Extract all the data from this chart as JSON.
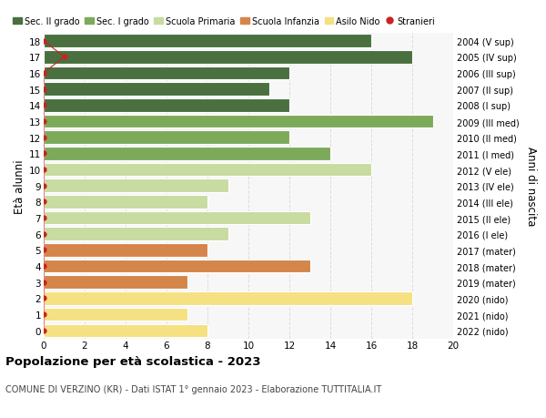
{
  "ages": [
    0,
    1,
    2,
    3,
    4,
    5,
    6,
    7,
    8,
    9,
    10,
    11,
    12,
    13,
    14,
    15,
    16,
    17,
    18
  ],
  "years_labels": [
    "2022 (nido)",
    "2021 (nido)",
    "2020 (nido)",
    "2019 (mater)",
    "2018 (mater)",
    "2017 (mater)",
    "2016 (I ele)",
    "2015 (II ele)",
    "2014 (III ele)",
    "2013 (IV ele)",
    "2012 (V ele)",
    "2011 (I med)",
    "2010 (II med)",
    "2009 (III med)",
    "2008 (I sup)",
    "2007 (II sup)",
    "2006 (III sup)",
    "2005 (IV sup)",
    "2004 (V sup)"
  ],
  "values": [
    8,
    7,
    18,
    7,
    13,
    8,
    9,
    13,
    8,
    9,
    16,
    14,
    12,
    19,
    12,
    11,
    12,
    18,
    16
  ],
  "bar_colors": [
    "#f5e082",
    "#f5e082",
    "#f5e082",
    "#d4854a",
    "#d4854a",
    "#d4854a",
    "#c8dba0",
    "#c8dba0",
    "#c8dba0",
    "#c8dba0",
    "#c8dba0",
    "#7daa5a",
    "#7daa5a",
    "#7daa5a",
    "#4a7040",
    "#4a7040",
    "#4a7040",
    "#4a7040",
    "#4a7040"
  ],
  "stranieri_values": [
    0,
    0,
    0,
    0,
    0,
    0,
    0,
    0,
    0,
    0,
    0,
    0,
    0,
    0,
    0,
    0,
    0,
    1,
    0
  ],
  "legend_labels": [
    "Sec. II grado",
    "Sec. I grado",
    "Scuola Primaria",
    "Scuola Infanzia",
    "Asilo Nido",
    "Stranieri"
  ],
  "legend_colors": [
    "#4a7040",
    "#7daa5a",
    "#c8dba0",
    "#d4854a",
    "#f5e082",
    "#cc2222"
  ],
  "title": "Popolazione per età scolastica - 2023",
  "subtitle": "COMUNE DI VERZINO (KR) - Dati ISTAT 1° gennaio 2023 - Elaborazione TUTTITALIA.IT",
  "ylabel_left": "Età alunni",
  "ylabel_right": "Anni di nascita",
  "xlim": [
    0,
    20
  ],
  "background_color": "#ffffff",
  "plot_bg_color": "#f7f7f7",
  "grid_color": "#dddddd",
  "bar_height": 0.82
}
